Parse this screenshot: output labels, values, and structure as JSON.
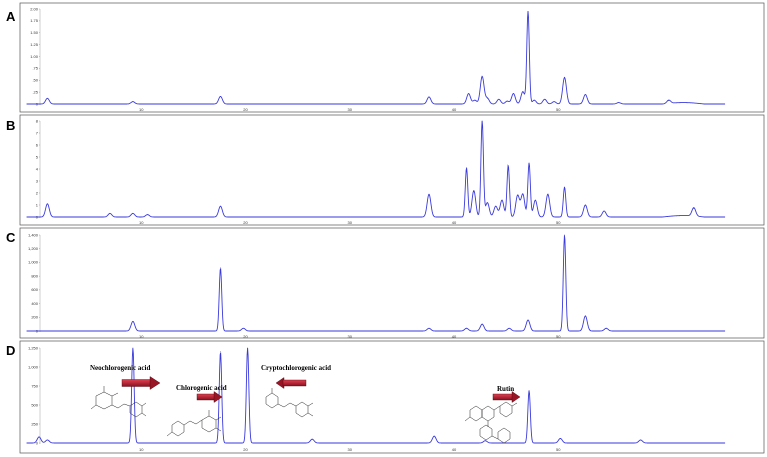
{
  "chart_data": [
    {
      "type": "line",
      "panel": "A",
      "xlim": [
        0,
        60
      ],
      "xticks": [
        "10",
        "20",
        "30",
        "40",
        "50"
      ],
      "ylim": [
        0,
        2.0
      ],
      "yticks": [
        "0",
        ".25",
        ".50",
        ".75",
        "1.00",
        "1.25",
        "1.50",
        "1.75",
        "2.00"
      ],
      "peaks": [
        {
          "x": 1.0,
          "y": 0.12
        },
        {
          "x": 9.2,
          "y": 0.05
        },
        {
          "x": 17.6,
          "y": 0.16
        },
        {
          "x": 37.6,
          "y": 0.15
        },
        {
          "x": 41.4,
          "y": 0.22
        },
        {
          "x": 42.0,
          "y": 0.08
        },
        {
          "x": 42.7,
          "y": 0.58
        },
        {
          "x": 43.2,
          "y": 0.12
        },
        {
          "x": 44.3,
          "y": 0.1
        },
        {
          "x": 45.1,
          "y": 0.06
        },
        {
          "x": 45.7,
          "y": 0.22
        },
        {
          "x": 46.6,
          "y": 0.26
        },
        {
          "x": 47.1,
          "y": 1.95
        },
        {
          "x": 47.7,
          "y": 0.08
        },
        {
          "x": 48.7,
          "y": 0.1
        },
        {
          "x": 49.6,
          "y": 0.05
        },
        {
          "x": 50.6,
          "y": 0.56
        },
        {
          "x": 52.6,
          "y": 0.2
        },
        {
          "x": 55.8,
          "y": 0.03
        },
        {
          "x": 60.6,
          "y": 0.07
        }
      ]
    },
    {
      "type": "line",
      "panel": "B",
      "xlim": [
        0,
        60
      ],
      "xticks": [
        "10",
        "20",
        "30",
        "40",
        "50"
      ],
      "ylim": [
        0,
        8
      ],
      "yticks": [
        "0",
        "1",
        "2",
        "3",
        "4",
        "5",
        "6",
        "7",
        "8"
      ],
      "peaks": [
        {
          "x": 1.0,
          "y": 1.1
        },
        {
          "x": 7.0,
          "y": 0.3
        },
        {
          "x": 9.2,
          "y": 0.3
        },
        {
          "x": 10.6,
          "y": 0.2
        },
        {
          "x": 17.6,
          "y": 0.9
        },
        {
          "x": 37.6,
          "y": 1.9
        },
        {
          "x": 41.2,
          "y": 4.1
        },
        {
          "x": 41.9,
          "y": 2.2
        },
        {
          "x": 42.7,
          "y": 8.0
        },
        {
          "x": 43.2,
          "y": 1.2
        },
        {
          "x": 44.0,
          "y": 0.9
        },
        {
          "x": 44.6,
          "y": 1.4
        },
        {
          "x": 45.2,
          "y": 4.3
        },
        {
          "x": 46.1,
          "y": 1.8
        },
        {
          "x": 46.6,
          "y": 1.9
        },
        {
          "x": 47.2,
          "y": 4.5
        },
        {
          "x": 47.8,
          "y": 1.4
        },
        {
          "x": 49.0,
          "y": 1.9
        },
        {
          "x": 50.6,
          "y": 2.5
        },
        {
          "x": 52.6,
          "y": 1.0
        },
        {
          "x": 54.4,
          "y": 0.5
        },
        {
          "x": 63.0,
          "y": 0.7
        }
      ]
    },
    {
      "type": "line",
      "panel": "C",
      "xlim": [
        0,
        60
      ],
      "xticks": [
        "10",
        "20",
        "30",
        "40",
        "50"
      ],
      "ylim": [
        0,
        1400
      ],
      "yticks": [
        "0",
        "200",
        "400",
        "600",
        "800",
        "1,000",
        "1,200",
        "1,400"
      ],
      "peaks": [
        {
          "x": 9.2,
          "y": 140
        },
        {
          "x": 17.6,
          "y": 920
        },
        {
          "x": 19.8,
          "y": 40
        },
        {
          "x": 37.6,
          "y": 40
        },
        {
          "x": 41.2,
          "y": 40
        },
        {
          "x": 42.7,
          "y": 100
        },
        {
          "x": 45.3,
          "y": 40
        },
        {
          "x": 47.1,
          "y": 160
        },
        {
          "x": 50.6,
          "y": 1400
        },
        {
          "x": 52.6,
          "y": 220
        },
        {
          "x": 54.6,
          "y": 40
        }
      ]
    },
    {
      "type": "line",
      "panel": "D",
      "xlim": [
        0,
        60
      ],
      "xticks": [
        "10",
        "20",
        "30",
        "40",
        "50"
      ],
      "ylim": [
        0,
        1250
      ],
      "yticks": [
        "0",
        "250",
        "500",
        "750",
        "1,000",
        "1,250"
      ],
      "peaks": [
        {
          "x": 0.2,
          "y": 80
        },
        {
          "x": 1.0,
          "y": 40
        },
        {
          "x": 9.2,
          "y": 1250
        },
        {
          "x": 17.6,
          "y": 1200
        },
        {
          "x": 20.2,
          "y": 1250
        },
        {
          "x": 26.4,
          "y": 50
        },
        {
          "x": 38.1,
          "y": 90
        },
        {
          "x": 43.0,
          "y": 30
        },
        {
          "x": 47.2,
          "y": 690
        },
        {
          "x": 50.2,
          "y": 60
        },
        {
          "x": 57.9,
          "y": 40
        }
      ],
      "annotations": [
        {
          "label": "Neochlorogenic acid",
          "x": 9.2
        },
        {
          "label": "Chlorogenic acid",
          "x": 17.6
        },
        {
          "label": "Cryptochlorogenic acid",
          "x": 20.2
        },
        {
          "label": "Rutin",
          "x": 47.2
        }
      ]
    }
  ]
}
